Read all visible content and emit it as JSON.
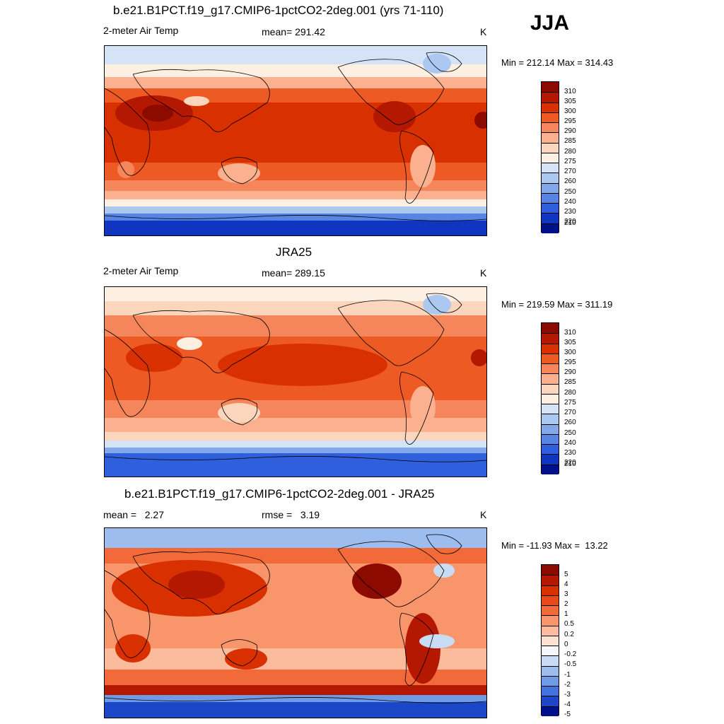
{
  "season": "JJA",
  "panels": [
    {
      "title": "b.e21.B1PCT.f19_g17.CMIP6-1pctCO2-2deg.001 (yrs 71-110)",
      "left_label": "2-meter Air Temp",
      "center_label": "mean= 291.42",
      "units": "K",
      "minmax": "Min = 212.14 Max = 314.43",
      "colorbar_labels": [
        "310",
        "305",
        "300",
        "295",
        "290",
        "285",
        "280",
        "275",
        "270",
        "260",
        "250",
        "240",
        "230",
        "220",
        "210"
      ],
      "colorbar_colors": [
        "#8c0a00",
        "#b51800",
        "#d93000",
        "#ee5a24",
        "#f5855a",
        "#fbb08f",
        "#fcd5bd",
        "#fdf0e2",
        "#d4e4f6",
        "#aac8f0",
        "#82a8ea",
        "#5884e4",
        "#2f5fdd",
        "#1035c0",
        "#00108a"
      ]
    },
    {
      "title": "JRA25",
      "left_label": "2-meter Air Temp",
      "center_label": "mean= 289.15",
      "units": "K",
      "minmax": "Min = 219.59 Max = 311.19",
      "colorbar_labels": [
        "310",
        "305",
        "300",
        "295",
        "290",
        "285",
        "280",
        "275",
        "270",
        "260",
        "250",
        "240",
        "230",
        "220",
        "210"
      ],
      "colorbar_colors": [
        "#8c0a00",
        "#b51800",
        "#d93000",
        "#ee5a24",
        "#f5855a",
        "#fbb08f",
        "#fcd5bd",
        "#fdf0e2",
        "#d4e4f6",
        "#aac8f0",
        "#82a8ea",
        "#5884e4",
        "#2f5fdd",
        "#1035c0",
        "#00108a"
      ]
    },
    {
      "title": "b.e21.B1PCT.f19_g17.CMIP6-1pctCO2-2deg.001 - JRA25",
      "left_label": "mean =   2.27",
      "center_label": "rmse =   3.19",
      "units": "K",
      "minmax": "Min = -11.93 Max =  13.22",
      "colorbar_labels": [
        "5",
        "4",
        "3",
        "2",
        "1",
        "0.5",
        "0.2",
        "0",
        "-0.2",
        "-0.5",
        "-1",
        "-2",
        "-3",
        "-4",
        "-5"
      ],
      "colorbar_colors": [
        "#8c0a00",
        "#b51800",
        "#d93000",
        "#e84a1a",
        "#f26a3a",
        "#f8956a",
        "#fbbc9e",
        "#fde2d2",
        "#f4f7fd",
        "#c8dcf5",
        "#9cbdee",
        "#6f9ae6",
        "#4373de",
        "#1c46c8",
        "#00108a"
      ]
    }
  ]
}
